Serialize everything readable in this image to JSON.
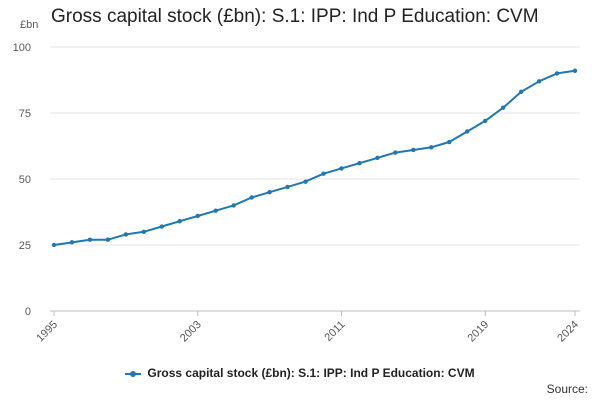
{
  "chart_data": {
    "type": "line",
    "title": "Gross capital stock (£bn): S.1: IPP: Ind P Education: CVM",
    "ylabel": "£bn",
    "xlabel": "",
    "x": [
      1995,
      1996,
      1997,
      1998,
      1999,
      2000,
      2001,
      2002,
      2003,
      2004,
      2005,
      2006,
      2007,
      2008,
      2009,
      2010,
      2011,
      2012,
      2013,
      2014,
      2015,
      2016,
      2017,
      2018,
      2019,
      2020,
      2021,
      2022,
      2023,
      2024
    ],
    "xticks": [
      "1995",
      "2003",
      "2011",
      "2019",
      "2024"
    ],
    "ylim": [
      0,
      100
    ],
    "yticks": [
      "0",
      "25",
      "50",
      "75",
      "100"
    ],
    "grid": true,
    "series": [
      {
        "name": "Gross capital stock (£bn): S.1: IPP: Ind P Education: CVM",
        "color": "#1f77b4",
        "values": [
          25,
          26,
          27,
          27,
          29,
          30,
          32,
          34,
          36,
          38,
          40,
          43,
          45,
          47,
          49,
          52,
          54,
          56,
          58,
          60,
          61,
          62,
          64,
          68,
          72,
          77,
          83,
          87,
          90,
          91
        ]
      }
    ],
    "legend_position": "bottom"
  },
  "footer": {
    "source_label": "Source:"
  }
}
